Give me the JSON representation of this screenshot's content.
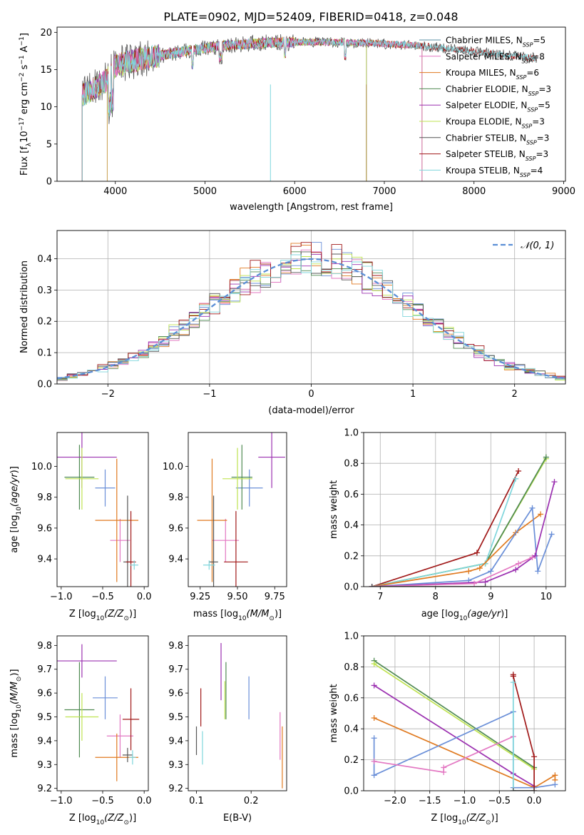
{
  "figure_title": "PLATE=0902, MJD=52409, FIBERID=0418, z=0.048",
  "colors": {
    "Chabrier MILES": "#5a8fa6",
    "Salpeter MILES": "#e377c2",
    "Kroupa MILES": "#e07a20",
    "Chabrier ELODIE": "#4f8a52",
    "Salpeter ELODIE": "#9b30b0",
    "Kroupa ELODIE": "#bfe34f",
    "Chabrier STELIB": "#555555",
    "Salpeter STELIB": "#a01818",
    "Kroupa STELIB": "#7fd6dc",
    "normal": "#5b8fd6",
    "blue_series": "#6a8fd8"
  },
  "chart_data": [
    {
      "id": "spectrum",
      "type": "line",
      "xlabel": "wavelength [Angstrom, rest frame]",
      "ylabel": "Flux [f_λ10^-17 erg cm^-2 s^-1 A^-1]",
      "xlim": [
        3350,
        9020
      ],
      "ylim": [
        0,
        20.7
      ],
      "xticks": [
        4000,
        5000,
        6000,
        7000,
        8000,
        9000
      ],
      "yticks": [
        0,
        5,
        10,
        15,
        20
      ],
      "legend_position": "top-right",
      "series": [
        {
          "name": "Chabrier MILES, N_SSP=5",
          "x_range": [
            3630,
            7420
          ]
        },
        {
          "name": "Salpeter MILES, N_SSP=8",
          "x_range": [
            3630,
            7420
          ]
        },
        {
          "name": "Kroupa MILES, N_SSP=6",
          "x_range": [
            3630,
            7420
          ]
        },
        {
          "name": "Chabrier ELODIE, N_SSP=3",
          "x_range": [
            3630,
            6800
          ]
        },
        {
          "name": "Salpeter ELODIE, N_SSP=5",
          "x_range": [
            3630,
            6800
          ]
        },
        {
          "name": "Kroupa ELODIE, N_SSP=3",
          "x_range": [
            3630,
            6800
          ]
        },
        {
          "name": "Chabrier STELIB, N_SSP=3",
          "x_range": [
            3630,
            8700
          ]
        },
        {
          "name": "Salpeter STELIB, N_SSP=3",
          "x_range": [
            3630,
            8700
          ]
        },
        {
          "name": "Kroupa STELIB, N_SSP=4",
          "x_range": [
            3630,
            8700
          ]
        }
      ],
      "continuum": [
        [
          3630,
          11.5
        ],
        [
          3900,
          13.5
        ],
        [
          4000,
          15.5
        ],
        [
          4300,
          16.5
        ],
        [
          4800,
          17.5
        ],
        [
          5200,
          18.2
        ],
        [
          5700,
          18.6
        ],
        [
          6200,
          18.7
        ],
        [
          6800,
          18.6
        ],
        [
          7400,
          18.2
        ],
        [
          8000,
          17.4
        ],
        [
          8700,
          16.5
        ]
      ]
    },
    {
      "id": "residual_hist",
      "type": "histogram",
      "xlabel": "(data-model)/error",
      "ylabel": "Normed distribution",
      "xlim": [
        -2.5,
        2.5
      ],
      "ylim": [
        0,
        0.49
      ],
      "xticks": [
        -2,
        -1,
        0,
        1,
        2
      ],
      "yticks": [
        0.0,
        0.1,
        0.2,
        0.3,
        0.4
      ],
      "grid": true,
      "bin_width": 0.1,
      "legend": "𝒩(0, 1)",
      "legend_position": "top-right",
      "curve": {
        "type": "normal",
        "mean": 0,
        "sigma": 1
      }
    },
    {
      "id": "age_vs_Z",
      "type": "errorbar",
      "xlabel": "Z [log10(Z/Z⊙)]",
      "ylabel": "age [log10(age/yr)]",
      "xlim": [
        -1.05,
        0.05
      ],
      "ylim": [
        9.22,
        10.22
      ],
      "xticks": [
        -1.0,
        -0.5,
        0.0
      ],
      "yticks": [
        9.4,
        9.6,
        9.8,
        10.0
      ],
      "points": [
        {
          "series": "Chabrier MILES",
          "x": -0.47,
          "y": 9.86,
          "xerr": 0.12,
          "yerr": 0.12,
          "color": "#6a8fd8"
        },
        {
          "series": "Salpeter MILES",
          "x": -0.29,
          "y": 9.52,
          "xerr": 0.12,
          "yerr": 0.14
        },
        {
          "series": "Kroupa MILES",
          "x": -0.33,
          "y": 9.65,
          "xerr": 0.26,
          "yerr": 0.4
        },
        {
          "series": "Chabrier ELODIE",
          "x": -0.78,
          "y": 9.93,
          "xerr": 0.18,
          "yerr": 0.21
        },
        {
          "series": "Salpeter ELODIE",
          "x": -0.75,
          "y": 10.06,
          "xerr": 0.42,
          "yerr": 0.2
        },
        {
          "series": "Kroupa ELODIE",
          "x": -0.75,
          "y": 9.92,
          "xerr": 0.2,
          "yerr": 0.2
        },
        {
          "series": "Chabrier STELIB",
          "x": -0.2,
          "y": 9.38,
          "xerr": 0.05,
          "yerr": 0.43
        },
        {
          "series": "Salpeter STELIB",
          "x": -0.16,
          "y": 9.38,
          "xerr": 0.06,
          "yerr": 0.33
        },
        {
          "series": "Kroupa STELIB",
          "x": -0.12,
          "y": 9.36,
          "xerr": 0.05,
          "yerr": 0.03
        }
      ]
    },
    {
      "id": "age_vs_mass",
      "type": "errorbar",
      "xlabel": "mass [log10(M/M⊙)]",
      "ylabel": "",
      "xlim": [
        9.17,
        9.83
      ],
      "ylim": [
        9.22,
        10.22
      ],
      "xticks": [
        9.25,
        9.5,
        9.75
      ],
      "yticks": [
        9.4,
        9.6,
        9.8,
        10.0
      ],
      "points": [
        {
          "series": "Chabrier MILES",
          "x": 9.58,
          "y": 9.86,
          "xerr": 0.09,
          "yerr": 0.12,
          "color": "#6a8fd8"
        },
        {
          "series": "Salpeter MILES",
          "x": 9.42,
          "y": 9.52,
          "xerr": 0.09,
          "yerr": 0.14
        },
        {
          "series": "Kroupa MILES",
          "x": 9.33,
          "y": 9.65,
          "xerr": 0.1,
          "yerr": 0.4
        },
        {
          "series": "Chabrier ELODIE",
          "x": 9.53,
          "y": 9.93,
          "xerr": 0.07,
          "yerr": 0.21
        },
        {
          "series": "Salpeter ELODIE",
          "x": 9.73,
          "y": 10.06,
          "xerr": 0.09,
          "yerr": 0.2
        },
        {
          "series": "Kroupa ELODIE",
          "x": 9.5,
          "y": 9.92,
          "xerr": 0.1,
          "yerr": 0.2
        },
        {
          "series": "Chabrier STELIB",
          "x": 9.34,
          "y": 9.38,
          "xerr": 0.03,
          "yerr": 0.43
        },
        {
          "series": "Salpeter STELIB",
          "x": 9.49,
          "y": 9.38,
          "xerr": 0.08,
          "yerr": 0.33
        },
        {
          "series": "Kroupa STELIB",
          "x": 9.31,
          "y": 9.36,
          "xerr": 0.04,
          "yerr": 0.03
        }
      ]
    },
    {
      "id": "weight_vs_age",
      "type": "line",
      "xlabel": "age [log10(age/yr)]",
      "ylabel": "mass weight",
      "xlim": [
        6.7,
        10.35
      ],
      "ylim": [
        0,
        1.0
      ],
      "xticks": [
        7,
        8,
        9,
        10
      ],
      "yticks": [
        0.0,
        0.2,
        0.4,
        0.6,
        0.8,
        1.0
      ],
      "grid": true,
      "series": [
        {
          "name": "Kroupa ELODIE",
          "x": [
            6.85,
            8.9,
            10.0
          ],
          "y": [
            0.0,
            0.15,
            0.83
          ]
        },
        {
          "name": "Chabrier ELODIE",
          "x": [
            6.85,
            8.9,
            10.0
          ],
          "y": [
            0.0,
            0.15,
            0.84
          ]
        },
        {
          "name": "Salpeter STELIB",
          "x": [
            6.85,
            8.75,
            9.5
          ],
          "y": [
            0.0,
            0.22,
            0.75
          ]
        },
        {
          "name": "Kroupa STELIB",
          "x": [
            6.85,
            8.9,
            9.45
          ],
          "y": [
            0.0,
            0.15,
            0.7
          ]
        },
        {
          "name": "Kroupa MILES",
          "x": [
            6.85,
            8.6,
            8.8,
            9.45,
            9.9
          ],
          "y": [
            0.0,
            0.1,
            0.12,
            0.35,
            0.47
          ]
        },
        {
          "name": "Chabrier MILES",
          "x": [
            6.85,
            8.6,
            9.0,
            9.75,
            9.85,
            10.1
          ],
          "y": [
            0.0,
            0.04,
            0.1,
            0.51,
            0.1,
            0.34
          ]
        },
        {
          "name": "Salpeter ELODIE",
          "x": [
            6.85,
            8.9,
            9.45,
            9.8,
            10.15
          ],
          "y": [
            0.0,
            0.03,
            0.11,
            0.2,
            0.68
          ]
        },
        {
          "name": "Salpeter MILES",
          "x": [
            6.85,
            8.7,
            9.5,
            9.75
          ],
          "y": [
            0.0,
            0.02,
            0.15,
            0.19
          ]
        },
        {
          "name": "Chabrier STELIB",
          "x": [
            6.85,
            8.9
          ],
          "y": [
            0.0,
            0.0
          ]
        }
      ]
    },
    {
      "id": "mass_vs_Z",
      "type": "errorbar",
      "xlabel": "Z [log10(Z/Z⊙)]",
      "ylabel": "mass [log10(M/M⊙)]",
      "xlim": [
        -1.05,
        0.05
      ],
      "ylim": [
        9.19,
        9.84
      ],
      "xticks": [
        -1.0,
        -0.5,
        0.0
      ],
      "yticks": [
        9.2,
        9.3,
        9.4,
        9.5,
        9.6,
        9.7,
        9.8
      ],
      "points": [
        {
          "series": "Chabrier MILES",
          "x": -0.47,
          "y": 9.58,
          "xerr": 0.15,
          "yerr": 0.09,
          "color": "#6a8fd8"
        },
        {
          "series": "Salpeter MILES",
          "x": -0.29,
          "y": 9.42,
          "xerr": 0.16,
          "yerr": 0.09
        },
        {
          "series": "Kroupa MILES",
          "x": -0.33,
          "y": 9.33,
          "xerr": 0.26,
          "yerr": 0.1
        },
        {
          "series": "Chabrier ELODIE",
          "x": -0.78,
          "y": 9.53,
          "xerr": 0.18,
          "yerr": 0.2
        },
        {
          "series": "Salpeter ELODIE",
          "x": -0.75,
          "y": 9.735,
          "xerr": 0.42,
          "yerr": 0.07
        },
        {
          "series": "Kroupa ELODIE",
          "x": -0.75,
          "y": 9.5,
          "xerr": 0.2,
          "yerr": 0.1
        },
        {
          "series": "Chabrier STELIB",
          "x": -0.2,
          "y": 9.34,
          "xerr": 0.06,
          "yerr": 0.03
        },
        {
          "series": "Salpeter STELIB",
          "x": -0.16,
          "y": 9.49,
          "xerr": 0.1,
          "yerr": 0.13
        },
        {
          "series": "Kroupa STELIB",
          "x": -0.14,
          "y": 9.33,
          "xerr": 0.04,
          "yerr": 0.03
        }
      ]
    },
    {
      "id": "mass_vs_ebv",
      "type": "errorbar",
      "xlabel": "E(B-V)",
      "ylabel": "",
      "xlim": [
        0.085,
        0.265
      ],
      "ylim": [
        9.19,
        9.84
      ],
      "xticks": [
        0.1,
        0.2
      ],
      "yticks": [
        9.2,
        9.3,
        9.4,
        9.5,
        9.6,
        9.7,
        9.8
      ],
      "points": [
        {
          "series": "Chabrier MILES",
          "x": 0.196,
          "y": 9.58,
          "yerr": 0.09,
          "color": "#6a8fd8"
        },
        {
          "series": "Salpeter MILES",
          "x": 0.253,
          "y": 9.42,
          "yerr": 0.1
        },
        {
          "series": "Kroupa MILES",
          "x": 0.257,
          "y": 9.33,
          "yerr": 0.13
        },
        {
          "series": "Chabrier ELODIE",
          "x": 0.154,
          "y": 9.61,
          "yerr": 0.12
        },
        {
          "series": "Salpeter ELODIE",
          "x": 0.145,
          "y": 9.69,
          "yerr": 0.12
        },
        {
          "series": "Kroupa ELODIE",
          "x": 0.152,
          "y": 9.57,
          "yerr": 0.08
        },
        {
          "series": "Chabrier STELIB",
          "x": 0.1,
          "y": 9.4,
          "yerr": 0.06
        },
        {
          "series": "Salpeter STELIB",
          "x": 0.108,
          "y": 9.54,
          "yerr": 0.08
        },
        {
          "series": "Kroupa STELIB",
          "x": 0.111,
          "y": 9.37,
          "yerr": 0.07
        }
      ]
    },
    {
      "id": "weight_vs_Z",
      "type": "line",
      "xlabel": "Z [log10(Z/Z⊙)]",
      "ylabel": "mass weight",
      "xlim": [
        -2.45,
        0.45
      ],
      "ylim": [
        0,
        1.0
      ],
      "xticks": [
        -2.0,
        -1.5,
        -1.0,
        -0.5,
        0.0
      ],
      "yticks": [
        0.0,
        0.2,
        0.4,
        0.6,
        0.8,
        1.0
      ],
      "grid": true,
      "series": [
        {
          "name": "Chabrier ELODIE",
          "x": [
            -2.3,
            0.0
          ],
          "y": [
            0.84,
            0.15
          ]
        },
        {
          "name": "Kroupa ELODIE",
          "x": [
            -2.3,
            0.0
          ],
          "y": [
            0.82,
            0.14
          ]
        },
        {
          "name": "Salpeter ELODIE",
          "x": [
            -2.3,
            -0.3,
            0.0
          ],
          "y": [
            0.68,
            0.11,
            0.03
          ]
        },
        {
          "name": "Kroupa MILES",
          "x": [
            -2.3,
            0.0,
            0.3,
            0.3
          ],
          "y": [
            0.47,
            0.02,
            0.1,
            0.07
          ]
        },
        {
          "name": "Chabrier MILES",
          "x": [
            -2.3,
            -2.3,
            -0.3,
            -0.3,
            0.0,
            0.3
          ],
          "y": [
            0.34,
            0.1,
            0.51,
            0.02,
            0.02,
            0.04
          ]
        },
        {
          "name": "Salpeter MILES",
          "x": [
            -2.3,
            -1.3,
            -1.3,
            -0.3
          ],
          "y": [
            0.19,
            0.12,
            0.15,
            0.35
          ]
        },
        {
          "name": "Salpeter STELIB",
          "x": [
            -0.3,
            -0.3,
            0.0,
            0.0
          ],
          "y": [
            0.75,
            0.74,
            0.22,
            0.0
          ]
        },
        {
          "name": "Kroupa STELIB",
          "x": [
            -0.3,
            -0.3
          ],
          "y": [
            0.7,
            0.0
          ]
        },
        {
          "name": "Chabrier STELIB",
          "x": [
            -0.3,
            0.0
          ],
          "y": [
            0.0,
            0.0
          ]
        }
      ]
    }
  ]
}
